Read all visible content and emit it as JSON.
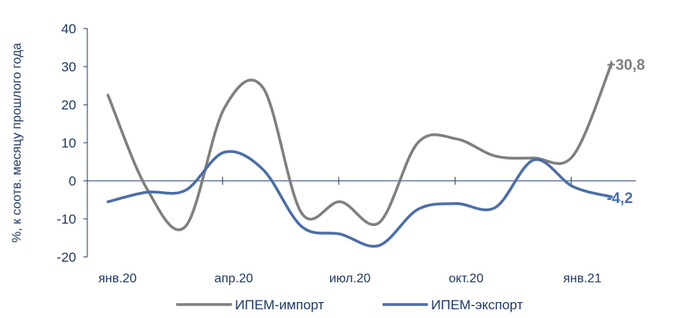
{
  "chart_data": {
    "type": "line",
    "ylabel": "%, к соотв. месяцу прошлого года",
    "ylim": [
      -20,
      40
    ],
    "yticks": [
      -20,
      -10,
      0,
      10,
      20,
      30,
      40
    ],
    "x_labels": [
      "янв.20",
      "апр.20",
      "июл.20",
      "окт.20",
      "янв.21"
    ],
    "x_label_indices": [
      0,
      3,
      6,
      9,
      12
    ],
    "x_count": 15,
    "series": [
      {
        "name": "ИПЕМ-импорт",
        "color": "#7f7f7f",
        "values": [
          22.5,
          -2,
          -12,
          19,
          24.5,
          -8.5,
          -5.5,
          -11,
          10,
          11,
          6.5,
          6,
          6.5,
          30.8
        ],
        "end_label": "+30,8"
      },
      {
        "name": "ИПЕМ-экспорт",
        "color": "#4a6ea9",
        "values": [
          -5.5,
          -3,
          -2.5,
          7.5,
          3,
          -12,
          -14,
          -17,
          -7.5,
          -6,
          -7,
          5.5,
          -1.5,
          -4.2
        ],
        "end_label": "-4,2"
      }
    ],
    "legend_position": "bottom",
    "grid": false
  }
}
